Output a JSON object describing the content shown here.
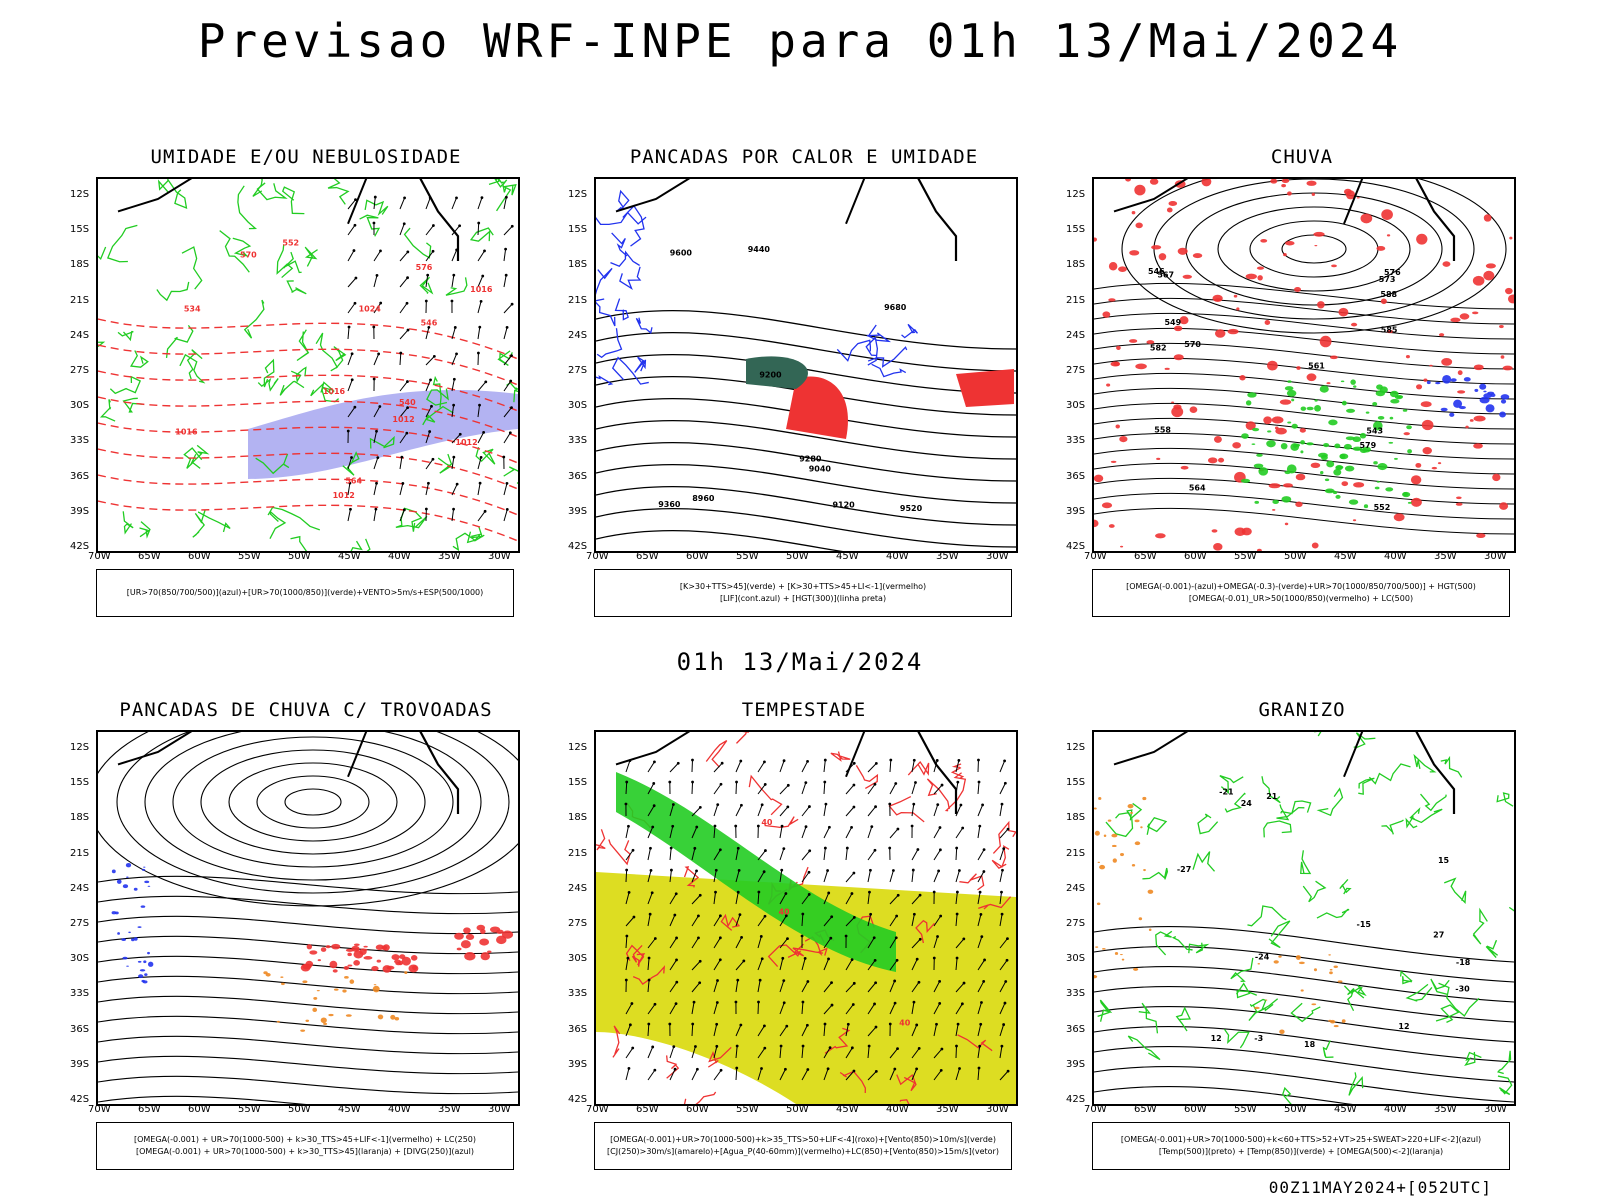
{
  "title": "Previsao WRF-INPE  para 01h 13/Mai/2024",
  "subtitle": "01h 13/Mai/2024",
  "footer": "00Z11MAY2024+[052UTC]",
  "lat_labels": [
    "12S",
    "15S",
    "18S",
    "21S",
    "24S",
    "27S",
    "30S",
    "33S",
    "36S",
    "39S",
    "42S"
  ],
  "lon_labels": [
    "70W",
    "65W",
    "60W",
    "55W",
    "50W",
    "45W",
    "40W",
    "35W",
    "30W"
  ],
  "panels": [
    {
      "title": "UMIDADE E/OU NEBULOSIDADE",
      "legend": [
        "[UR>70(850/700/500)](azul)+[UR>70(1000/850)](verde)+VENTO>5m/s+ESP(500/1000)"
      ],
      "contour_labels": [
        "1012",
        "1012",
        "1016",
        "1012",
        "1016",
        "1024",
        "1016",
        "576",
        "570",
        "564",
        "552",
        "546",
        "540",
        "534"
      ]
    },
    {
      "title": "PANCADAS POR CALOR E UMIDADE",
      "legend": [
        "[K>30+TTS>45](verde) + [K>30+TTS>45+LI<-1](vermelho)",
        "[LIF](cont.azul) + [HGT(300)](linha preta)"
      ],
      "contour_labels": [
        "9680",
        "9600",
        "9520",
        "9440",
        "9360",
        "9280",
        "9200",
        "9120",
        "9040",
        "8960"
      ]
    },
    {
      "title": "CHUVA",
      "legend": [
        "[OMEGA(-0.001)-(azul)+OMEGA(-0.3)-(verde)+UR>70(1000/850/700/500)] + HGT(500)",
        "[OMEGA(-0.01)_UR>50(1000/850)(vermelho) + LC(500)"
      ],
      "contour_labels": [
        "588",
        "585",
        "582",
        "579",
        "576",
        "573",
        "570",
        "567",
        "564",
        "561",
        "558",
        "552",
        "549",
        "546",
        "543"
      ]
    },
    {
      "title": "PANCADAS DE CHUVA C/ TROVOADAS",
      "legend": [
        "[OMEGA(-0.001) + UR>70(1000-500) + k>30_TTS>45+LIF<-1](vermelho) + LC(250)",
        "[OMEGA(-0.001) + UR>70(1000-500) + k>30_TTS>45](laranja) + [DIVG(250)](azul)"
      ],
      "contour_labels": []
    },
    {
      "title": "TEMPESTADE",
      "legend": [
        "[OMEGA(-0.001)+UR>70(1000-500)+k>35_TTS>50+LIF<-4](roxo)+[Vento(850)>10m/s](verde)",
        "[CJ(250)>30m/s](amarelo)+[Agua_P(40-60mm)](vermelho)+LC(850)+[Vento(850)>15m/s](vetor)"
      ],
      "contour_labels": [
        "40",
        "40",
        "40"
      ]
    },
    {
      "title": "GRANIZO",
      "legend": [
        "[OMEGA(-0.001)+UR>70(1000-500)+k<60+TTS>52+VT>25+SWEAT>220+LIF<-2](azul)",
        "[Temp(500)](preto) + [Temp(850)](verde) + [OMEGA(500)<-2](laranja)"
      ],
      "contour_labels": [
        "-3",
        "12",
        "12",
        "15",
        "18",
        "21",
        "24",
        "27",
        "-15",
        "-18",
        "-21",
        "-24",
        "-27",
        "-30"
      ]
    }
  ],
  "colors": {
    "green": "#22cc22",
    "red": "#ee3333",
    "blue": "#2233ee",
    "lavender": "#9999ee",
    "yellow": "#dddd22",
    "orange": "#ee8822",
    "teal": "#336655",
    "black": "#000000"
  }
}
